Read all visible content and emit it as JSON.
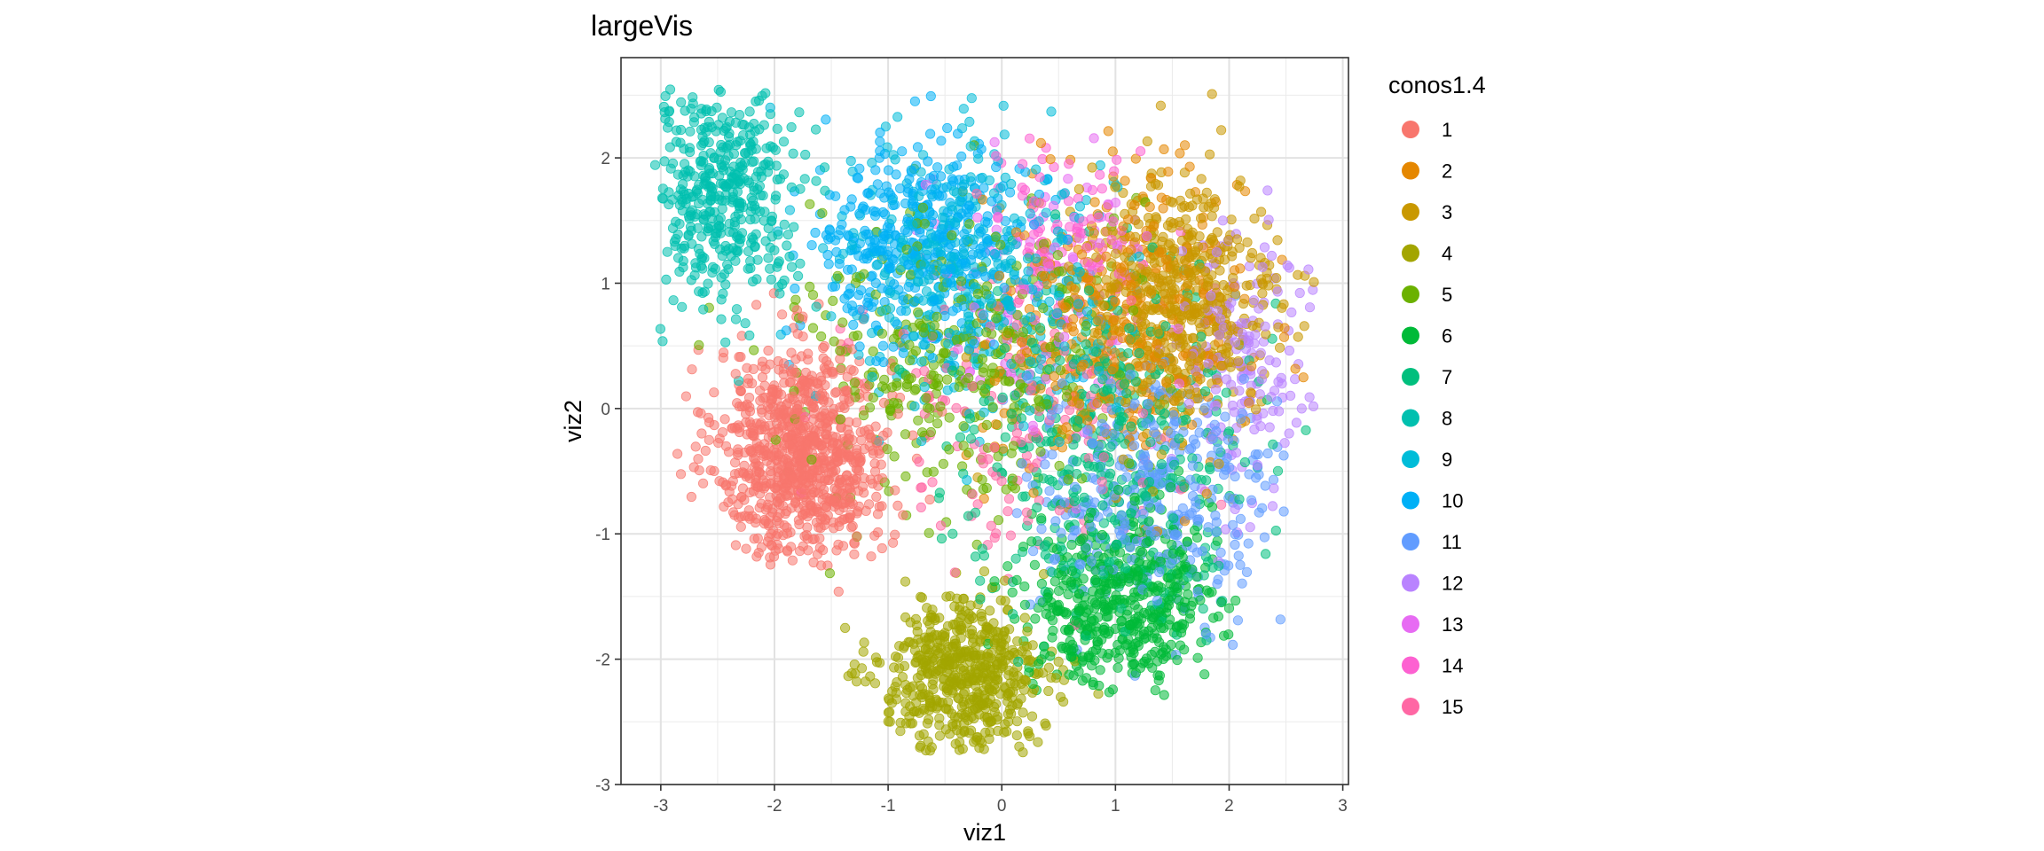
{
  "chart_data": {
    "type": "scatter",
    "title": "largeVis",
    "xlabel": "viz1",
    "ylabel": "viz2",
    "xlim": [
      -3.35,
      3.05
    ],
    "ylim": [
      -3.0,
      2.8
    ],
    "x_ticks": [
      -3,
      -2,
      -1,
      0,
      1,
      2,
      3
    ],
    "y_ticks": [
      -3,
      -2,
      -1,
      0,
      1,
      2
    ],
    "x_tick_labels": [
      "-3",
      "-2",
      "-1",
      "0",
      "1",
      "2",
      "3"
    ],
    "y_tick_labels": [
      "-3",
      "-2",
      "-1",
      "0",
      "1",
      "2"
    ],
    "grid": true,
    "legend": {
      "title": "conos1.4",
      "position": "right",
      "entries": [
        "1",
        "2",
        "3",
        "4",
        "5",
        "6",
        "7",
        "8",
        "9",
        "10",
        "11",
        "12",
        "13",
        "14",
        "15"
      ]
    },
    "point_alpha": 0.55,
    "series": [
      {
        "name": "1",
        "color": "#F8766D",
        "n": 900,
        "center": [
          -1.75,
          -0.35
        ],
        "spread": [
          0.38,
          0.42
        ]
      },
      {
        "name": "2",
        "color": "#E58700",
        "n": 380,
        "center": [
          1.05,
          0.65
        ],
        "spread": [
          0.55,
          0.6
        ]
      },
      {
        "name": "3",
        "color": "#C99800",
        "n": 560,
        "center": [
          1.55,
          0.85
        ],
        "spread": [
          0.45,
          0.5
        ]
      },
      {
        "name": "4",
        "color": "#A3A500",
        "n": 560,
        "center": [
          -0.35,
          -2.15
        ],
        "spread": [
          0.38,
          0.3
        ]
      },
      {
        "name": "5",
        "color": "#6BB100",
        "n": 380,
        "center": [
          -0.35,
          0.45
        ],
        "spread": [
          0.7,
          0.6
        ]
      },
      {
        "name": "6",
        "color": "#00BA38",
        "n": 520,
        "center": [
          1.05,
          -1.55
        ],
        "spread": [
          0.4,
          0.35
        ]
      },
      {
        "name": "7",
        "color": "#00BF7D",
        "n": 430,
        "center": [
          0.95,
          -0.25
        ],
        "spread": [
          0.65,
          0.65
        ]
      },
      {
        "name": "8",
        "color": "#00C0AF",
        "n": 420,
        "center": [
          -2.45,
          1.75
        ],
        "spread": [
          0.35,
          0.45
        ]
      },
      {
        "name": "9",
        "color": "#00BCD8",
        "n": 380,
        "center": [
          -0.25,
          1.05
        ],
        "spread": [
          0.6,
          0.55
        ]
      },
      {
        "name": "10",
        "color": "#00B0F6",
        "n": 420,
        "center": [
          -0.7,
          1.3
        ],
        "spread": [
          0.45,
          0.4
        ]
      },
      {
        "name": "11",
        "color": "#619CFF",
        "n": 360,
        "center": [
          1.35,
          -0.65
        ],
        "spread": [
          0.55,
          0.5
        ]
      },
      {
        "name": "12",
        "color": "#B983FF",
        "n": 160,
        "center": [
          2.15,
          0.35
        ],
        "spread": [
          0.3,
          0.6
        ]
      },
      {
        "name": "13",
        "color": "#E76BF3",
        "n": 110,
        "center": [
          0.3,
          0.8
        ],
        "spread": [
          0.55,
          0.6
        ]
      },
      {
        "name": "14",
        "color": "#FD61D1",
        "n": 90,
        "center": [
          0.55,
          1.4
        ],
        "spread": [
          0.4,
          0.35
        ]
      },
      {
        "name": "15",
        "color": "#FF67A4",
        "n": 150,
        "center": [
          0.1,
          -0.2
        ],
        "spread": [
          0.7,
          0.6
        ]
      }
    ]
  }
}
